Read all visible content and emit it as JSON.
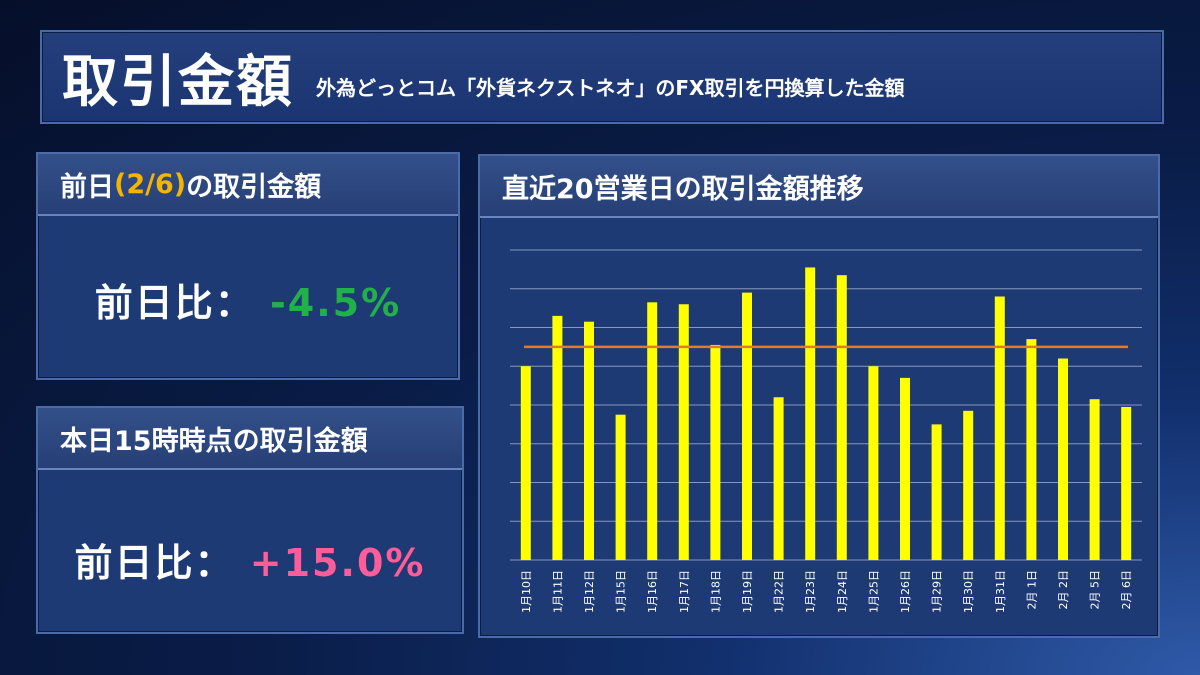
{
  "header": {
    "title": "取引金額",
    "subtitle": "外為どっとコム「外貨ネクストネオ」のFX取引を円換算した金額"
  },
  "card_prev": {
    "title_before": "前日",
    "title_date": "(2/6)",
    "title_after": "の取引金額",
    "label": "前日比：",
    "value": "-4.5%"
  },
  "card_today": {
    "title": "本日15時時点の取引金額",
    "label": "前日比：",
    "value": "+15.0%"
  },
  "chart_card": {
    "title": "直近20営業日の取引金額推移"
  },
  "colors": {
    "bar": "#ffff00",
    "average_line": "#e8782a",
    "negative": "#22b04a",
    "positive": "#ff5c9a",
    "date_accent": "#f5b400"
  },
  "chart_data": {
    "type": "bar",
    "title": "直近20営業日の取引金額推移",
    "categories": [
      "1月10日",
      "1月11日",
      "1月12日",
      "1月15日",
      "1月16日",
      "1月17日",
      "1月18日",
      "1月19日",
      "1月22日",
      "1月23日",
      "1月24日",
      "1月25日",
      "1月26日",
      "1月29日",
      "1月30日",
      "1月31日",
      "2月 1日",
      "2月 2日",
      "2月 5日",
      "2月 6日"
    ],
    "values": [
      5.0,
      6.3,
      6.15,
      3.75,
      6.65,
      6.6,
      5.55,
      6.9,
      4.2,
      7.55,
      7.35,
      5.0,
      4.7,
      3.5,
      3.85,
      6.8,
      5.7,
      5.2,
      4.15,
      3.95
    ],
    "average": 5.5,
    "ylim": [
      0,
      8
    ],
    "ytick_labels_shown": false,
    "grid": true,
    "legend": "none",
    "xlabel": "",
    "ylabel": ""
  }
}
